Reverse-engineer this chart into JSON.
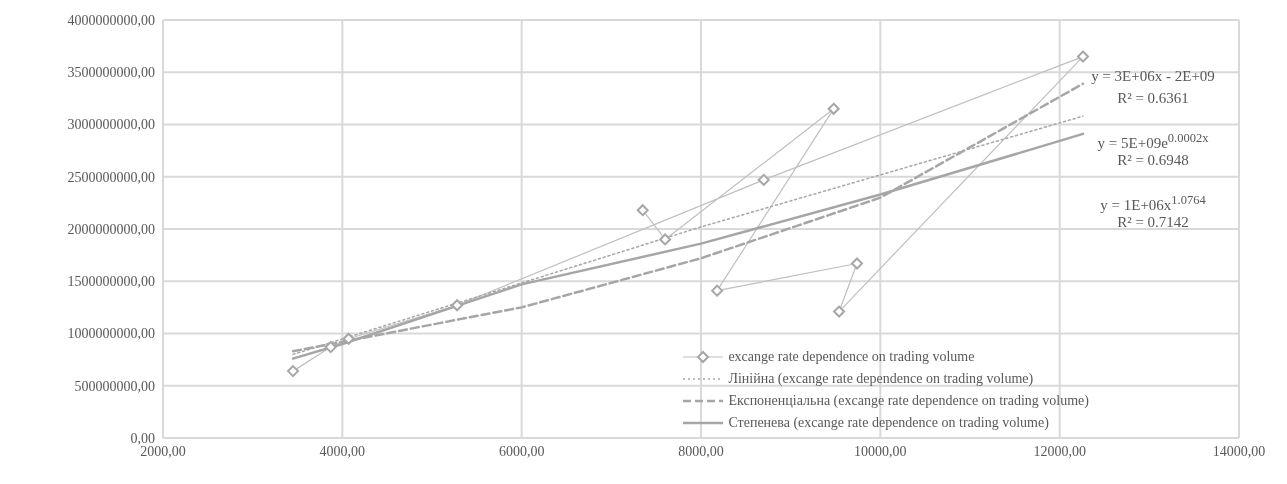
{
  "chart_data": {
    "type": "line",
    "xlim": [
      2000,
      14000
    ],
    "xticks": [
      {
        "value": 2000,
        "label": "2000,00"
      },
      {
        "value": 4000,
        "label": "4000,00"
      },
      {
        "value": 6000,
        "label": "6000,00"
      },
      {
        "value": 8000,
        "label": "8000,00"
      },
      {
        "value": 10000,
        "label": "10000,00"
      },
      {
        "value": 12000,
        "label": "12000,00"
      },
      {
        "value": 14000,
        "label": "14000,00"
      }
    ],
    "ylim": [
      0,
      4000000000
    ],
    "yticks": [
      {
        "value": 0,
        "label": "0,00"
      },
      {
        "value": 500000000,
        "label": "500000000,00"
      },
      {
        "value": 1000000000,
        "label": "1000000000,00"
      },
      {
        "value": 1500000000,
        "label": "1500000000,00"
      },
      {
        "value": 2000000000,
        "label": "2000000000,00"
      },
      {
        "value": 2500000000,
        "label": "2500000000,00"
      },
      {
        "value": 3000000000,
        "label": "3000000000,00"
      },
      {
        "value": 3500000000,
        "label": "3500000000,00"
      },
      {
        "value": 4000000000,
        "label": "4000000000,00"
      }
    ],
    "grid": true,
    "legend": "bottom right",
    "series": [
      {
        "name": "excange rate dependence on trading volume",
        "color": "#bfbfbf",
        "marker": "diamond",
        "line_style": "solid",
        "x": [
          3450,
          3870,
          4070,
          5280,
          8700,
          12260,
          9540,
          9740,
          8180,
          9480,
          7600,
          7350
        ],
        "values": [
          640000000,
          870000000,
          950000000,
          1270000000,
          2470000000,
          3650000000,
          1210000000,
          1670000000,
          1410000000,
          3150000000,
          1900000000,
          2180000000
        ]
      },
      {
        "name": "Лінійна (excange rate dependence on trading volume)",
        "color": "#a6a6a6",
        "marker": "none",
        "line_style": "dotted",
        "x": [
          3450,
          8000,
          12260
        ],
        "values": [
          800000000,
          2020000000,
          3080000000
        ]
      },
      {
        "name": "Експоненціальна (excange rate dependence on trading volume)",
        "color": "#a6a6a6",
        "marker": "none",
        "line_style": "dashed",
        "x": [
          3450,
          6000,
          8000,
          10000,
          12260
        ],
        "values": [
          830000000,
          1250000000,
          1720000000,
          2300000000,
          3390000000
        ]
      },
      {
        "name": "Степенева (excange rate dependence on trading volume)",
        "color": "#a6a6a6",
        "marker": "none",
        "line_style": "solid",
        "x": [
          3450,
          4000,
          6000,
          8000,
          10000,
          12260
        ],
        "values": [
          760000000,
          900000000,
          1470000000,
          1860000000,
          2330000000,
          2910000000
        ]
      }
    ],
    "annotations": [
      "y = 3E+06x - 2E+09",
      "R² = 0.6361",
      "y = 5E+09e$^{0.0002x}$",
      "R² = 0.6948",
      "y = 1E+06x$^{1.0764}$",
      "R² = 0.7142"
    ]
  }
}
